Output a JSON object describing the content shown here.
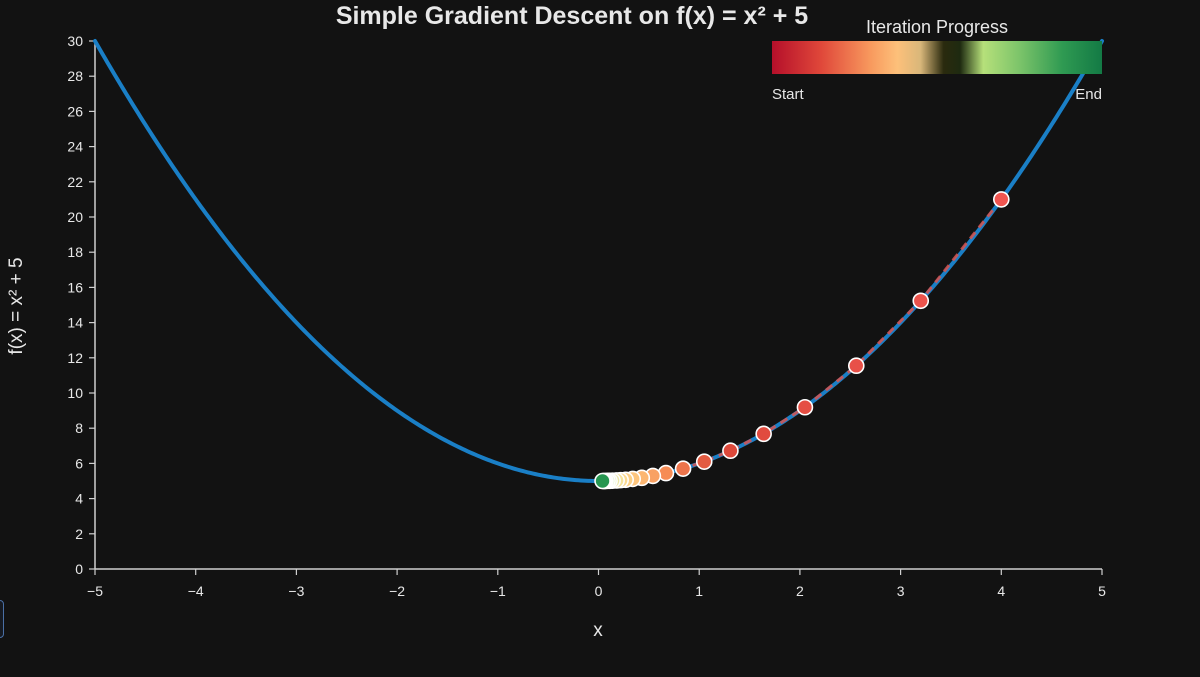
{
  "chart_data": {
    "type": "line",
    "title": "Simple Gradient Descent on f(x) = x² + 5",
    "xlabel": "x",
    "ylabel": "f(x) = x² + 5",
    "xlim": [
      -5,
      5
    ],
    "ylim": [
      0,
      30
    ],
    "x_ticks": [
      -5,
      -4,
      -3,
      -2,
      -1,
      0,
      1,
      2,
      3,
      4,
      5
    ],
    "x_tick_labels": [
      "−5",
      "−4",
      "−3",
      "−2",
      "−1",
      "0",
      "1",
      "2",
      "3",
      "4",
      "5"
    ],
    "y_ticks": [
      0,
      2,
      4,
      6,
      8,
      10,
      12,
      14,
      16,
      18,
      20,
      22,
      24,
      26,
      28,
      30
    ],
    "y_tick_labels": [
      "0",
      "2",
      "4",
      "6",
      "8",
      "10",
      "12",
      "14",
      "16",
      "18",
      "20",
      "22",
      "24",
      "26",
      "28",
      "30"
    ],
    "curve": {
      "x_start": -5,
      "x_end": 5,
      "color": "#1a7fc6"
    },
    "descent_path": {
      "color": "#d9534f",
      "points": [
        {
          "x": 4.0,
          "y": 21.0
        },
        {
          "x": 3.2,
          "y": 15.24
        },
        {
          "x": 2.56,
          "y": 11.55
        },
        {
          "x": 2.05,
          "y": 9.19
        },
        {
          "x": 1.64,
          "y": 7.68
        },
        {
          "x": 1.31,
          "y": 6.72
        },
        {
          "x": 1.05,
          "y": 6.1
        },
        {
          "x": 0.84,
          "y": 5.7
        },
        {
          "x": 0.67,
          "y": 5.45
        },
        {
          "x": 0.54,
          "y": 5.29
        },
        {
          "x": 0.43,
          "y": 5.18
        },
        {
          "x": 0.34,
          "y": 5.12
        },
        {
          "x": 0.27,
          "y": 5.07
        },
        {
          "x": 0.22,
          "y": 5.05
        },
        {
          "x": 0.18,
          "y": 5.03
        },
        {
          "x": 0.14,
          "y": 5.02
        },
        {
          "x": 0.11,
          "y": 5.01
        },
        {
          "x": 0.09,
          "y": 5.01
        },
        {
          "x": 0.07,
          "y": 5.0
        },
        {
          "x": 0.06,
          "y": 5.0
        },
        {
          "x": 0.05,
          "y": 5.0
        },
        {
          "x": 0.04,
          "y": 5.0
        }
      ]
    },
    "legend": {
      "title": "Iteration Progress",
      "start_label": "Start",
      "end_label": "End",
      "placement": "top-right",
      "gradient_colors": [
        "#a50026",
        "#d73027",
        "#f46d43",
        "#fdae61",
        "#fee08b",
        "#2a2a10",
        "#a6d96a",
        "#66bd63",
        "#1a9850",
        "#006837"
      ]
    }
  }
}
